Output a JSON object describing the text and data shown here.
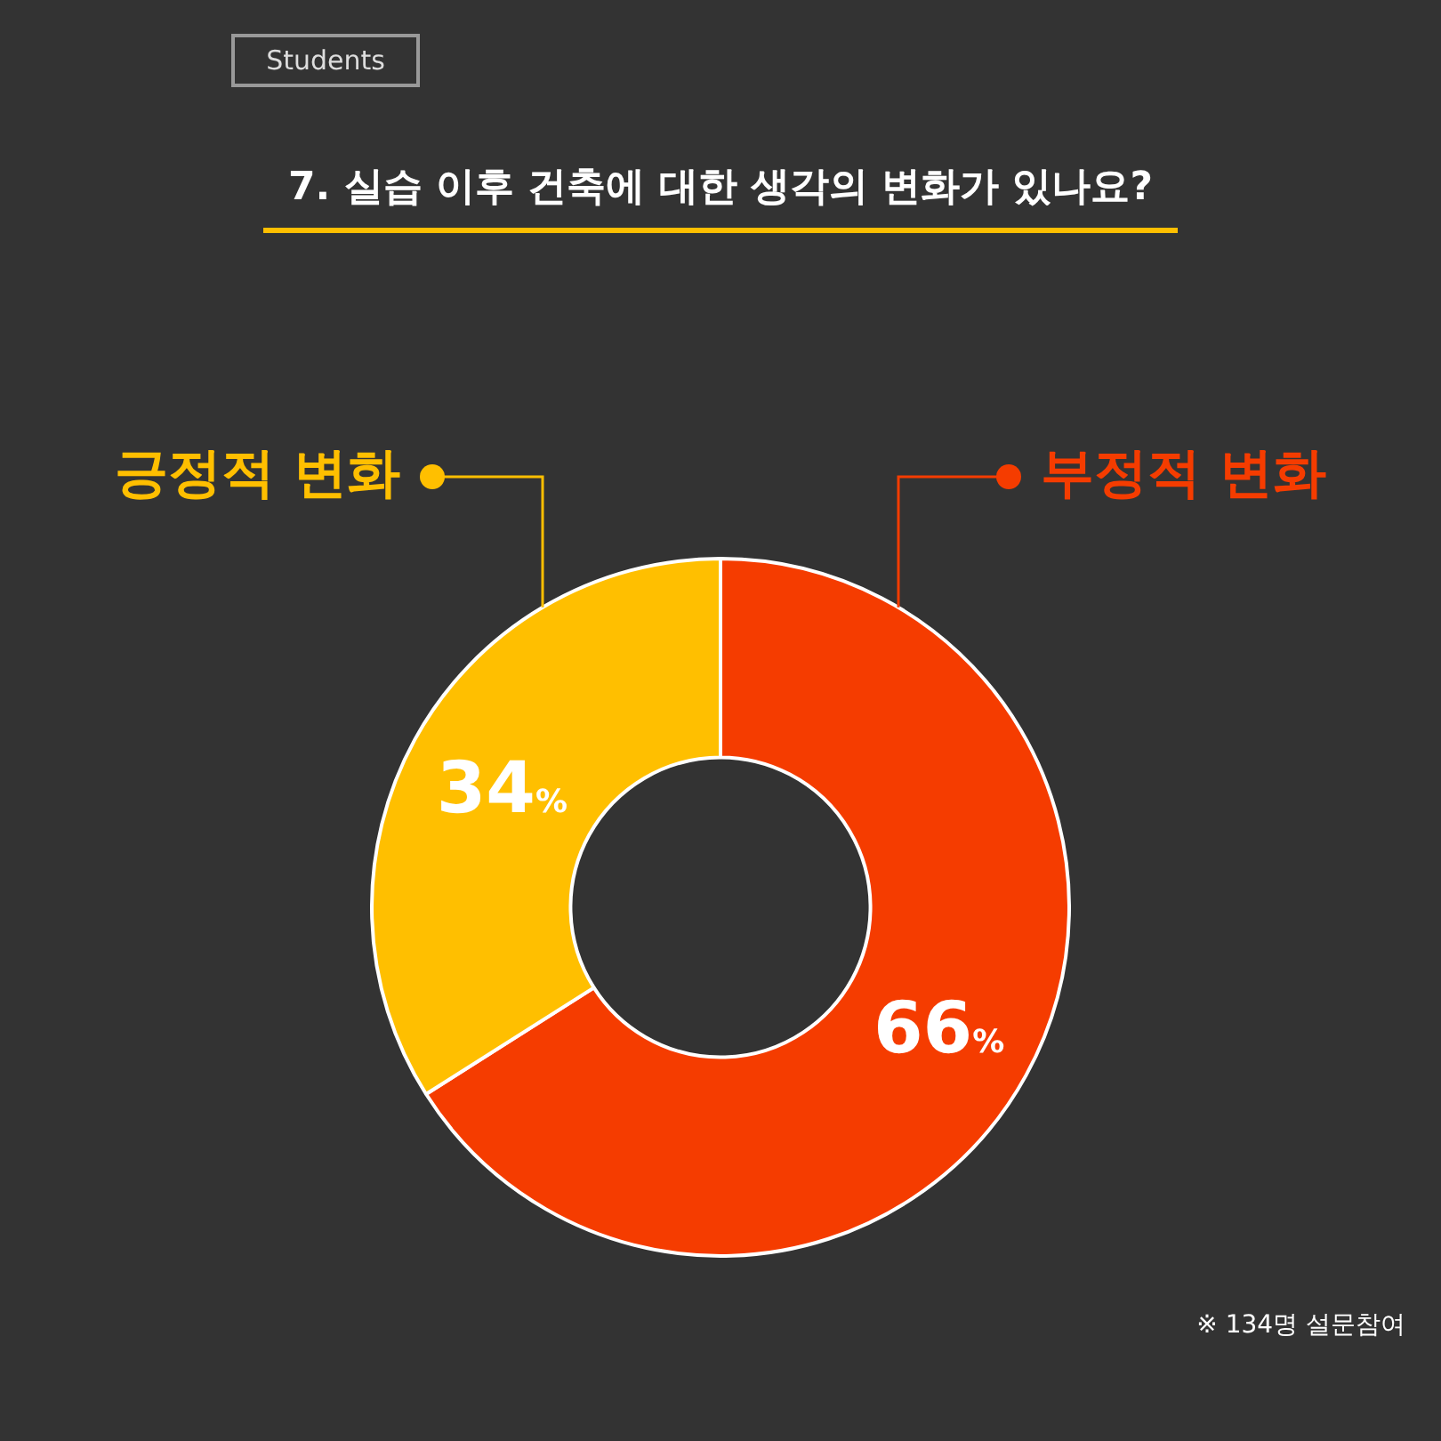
{
  "chart_data": {
    "type": "donut",
    "title": "7. 실습 이후 건축에 대한 생각의 변화가 있나요?",
    "categories": [
      "부정적 변화",
      "긍정적 변화"
    ],
    "values": [
      66,
      34
    ],
    "colors": [
      "#f53c00",
      "#ffbf00"
    ],
    "value_labels": [
      "66%",
      "34%"
    ],
    "legend": "top",
    "annotations": [
      "Students",
      "※ 134명 설문참여"
    ]
  }
}
